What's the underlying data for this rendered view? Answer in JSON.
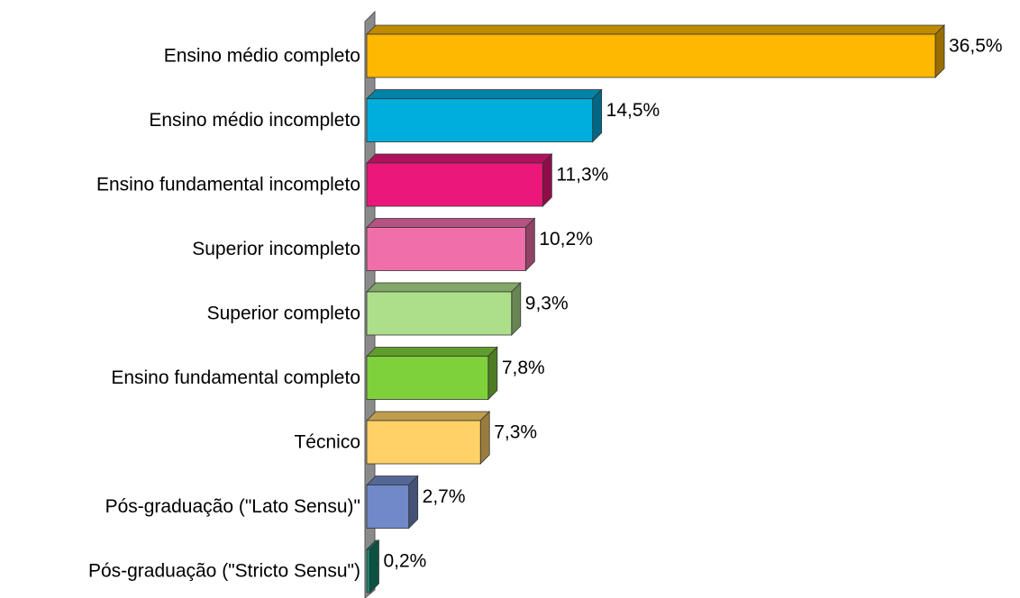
{
  "chart_data": {
    "type": "bar3d-horizontal",
    "categories": [
      "Ensino médio completo",
      "Ensino médio incompleto",
      "Ensino fundamental incompleto",
      "Superior incompleto",
      "Superior completo",
      "Ensino fundamental completo",
      "Técnico",
      "Pós-graduação (\"Lato Sensu)\"",
      "Pós-graduação (\"Stricto Sensu\")"
    ],
    "values": [
      36.5,
      14.5,
      11.3,
      10.2,
      9.3,
      7.8,
      7.3,
      2.7,
      0.2
    ],
    "value_labels": [
      "36,5%",
      "14,5%",
      "11,3%",
      "10,2%",
      "9,3%",
      "7,8%",
      "7,3%",
      "2,7%",
      "0,2%"
    ],
    "colors": [
      "#FFB800",
      "#00AEDD",
      "#EC177A",
      "#F06FAA",
      "#ADDF8A",
      "#7FD13B",
      "#FFD166",
      "#7189C8",
      "#128870"
    ]
  }
}
